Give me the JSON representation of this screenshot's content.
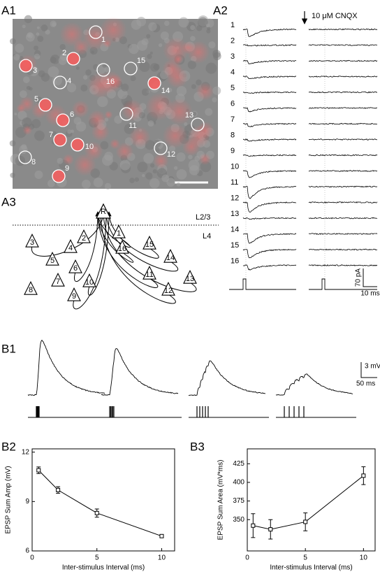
{
  "panel_labels": {
    "a1": "A1",
    "a2": "A2",
    "a3": "A3",
    "b1": "B1",
    "b2": "B2",
    "b3": "B3"
  },
  "a1": {
    "cells": [
      "1",
      "2",
      "3",
      "4",
      "5",
      "6",
      "7",
      "8",
      "9",
      "10",
      "11",
      "12",
      "13",
      "14",
      "15",
      "16"
    ]
  },
  "a2": {
    "traces": [
      "1",
      "2",
      "3",
      "4",
      "5",
      "6",
      "7",
      "8",
      "9",
      "10",
      "11",
      "12",
      "13",
      "14",
      "15",
      "16"
    ],
    "drug": "10 μM CNQX",
    "scale_y": "70 pA",
    "scale_x": "10 ms"
  },
  "a3": {
    "target": "R",
    "layer_upper": "L2/3",
    "layer_lower": "L4",
    "cells": [
      "1",
      "2",
      "3",
      "4",
      "5",
      "6",
      "7",
      "8",
      "9",
      "10",
      "11",
      "12",
      "13",
      "14",
      "15",
      "16"
    ]
  },
  "b1": {
    "scale_y": "3 mV",
    "scale_x": "50 ms"
  },
  "chart_data": [
    {
      "type": "line",
      "x": [
        0.5,
        2,
        5,
        10
      ],
      "values": [
        10.9,
        9.7,
        8.3,
        6.9
      ],
      "errors": [
        0.2,
        0.2,
        0.25,
        0.05
      ],
      "color": "#000000",
      "xlim": [
        0,
        11
      ],
      "ylim": [
        6,
        12.2
      ],
      "xticks": [
        0,
        5,
        10
      ],
      "yticks": [
        6,
        9,
        12
      ],
      "x_label": "Inter-stimulus Interval (ms)",
      "y_label": "EPSP Sum Amp (mV)"
    },
    {
      "type": "line",
      "x": [
        0.5,
        2,
        5,
        10
      ],
      "values": [
        342,
        337,
        347,
        409
      ],
      "errors": [
        16,
        13,
        12,
        12
      ],
      "color": "#000000",
      "xlim": [
        0,
        11
      ],
      "ylim": [
        308,
        445
      ],
      "xticks": [
        0,
        5,
        10
      ],
      "yticks": [
        350,
        375,
        400,
        425
      ],
      "x_label": "Inter-stimulus Interval (ms)",
      "y_label": "EPSP Sum Area (mV*ms)"
    }
  ]
}
